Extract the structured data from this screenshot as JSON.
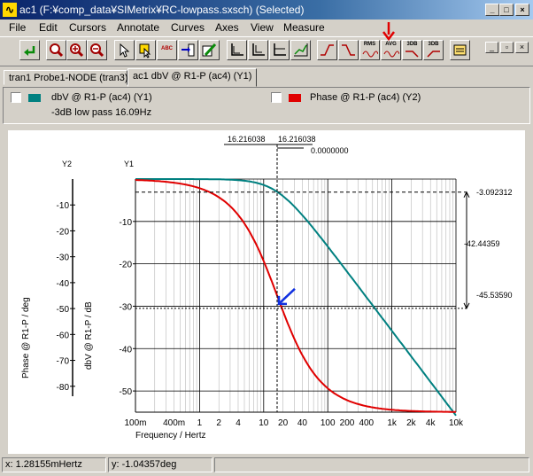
{
  "window": {
    "title": "ac1 (F:¥comp_data¥SIMetrix¥RC-lowpass.sxsch) (Selected)",
    "app_icon": "simetrix-icon"
  },
  "menu": [
    {
      "label": "File"
    },
    {
      "label": "Edit"
    },
    {
      "label": "Cursors"
    },
    {
      "label": "Annotate"
    },
    {
      "label": "Curves"
    },
    {
      "label": "Axes"
    },
    {
      "label": "View"
    },
    {
      "label": "Measure"
    }
  ],
  "toolbar": {
    "rms": "RMS",
    "avg": "AVG",
    "db3": "3DB",
    "db3b": "3DB",
    "annotation_arrow_color": "#e00000"
  },
  "tabs": [
    {
      "label": "tran1 Probe1-NODE (tran3)"
    },
    {
      "label": "ac1 dbV @ R1-P (ac4) (Y1)"
    }
  ],
  "legend": {
    "curve1": {
      "label": "dbV @ R1-P (ac4) (Y1)",
      "color": "#008080"
    },
    "curve2": {
      "label": "Phase @ R1-P (ac4) (Y2)",
      "color": "#e00000"
    },
    "measure": "-3dB low pass   16.09Hz"
  },
  "plot": {
    "y2_axis_title": "Y2",
    "y1_axis_title": "Y1",
    "y2_label": "Phase @ R1-P / deg",
    "y1_label": "dbV @ R1-P / dB",
    "x_label": "Frequency / Hertz",
    "cursor_x1": "16.216038",
    "cursor_x2": "16.216038",
    "cursor_delta": "0.0000000",
    "right_val_top": "-3.092312",
    "right_val_mid": "-42.44359",
    "right_val_bot": "-45.53590"
  },
  "chart_data": {
    "type": "line",
    "x_scale": "log",
    "x_ticks": [
      "100m",
      "400m",
      "1",
      "2",
      "4",
      "10",
      "20",
      "40",
      "100",
      "200",
      "400",
      "1k",
      "2k",
      "4k",
      "10k"
    ],
    "y1_ticks": [
      "-10",
      "-20",
      "-30",
      "-40",
      "-50"
    ],
    "y2_ticks": [
      "-10",
      "-20",
      "-30",
      "-40",
      "-50",
      "-60",
      "-70",
      "-80"
    ],
    "xlim": [
      0.1,
      10000
    ],
    "y1lim": [
      0,
      -55
    ],
    "y2lim": [
      0,
      -90
    ],
    "series": [
      {
        "name": "dbV @ R1-P (ac4) (Y1)",
        "axis": "y1",
        "color": "#008080",
        "x": [
          0.1,
          1,
          4,
          10,
          16.2,
          30,
          100,
          1000,
          10000
        ],
        "y": [
          0,
          -0.02,
          -0.25,
          -1.3,
          -3.09,
          -6.5,
          -16.3,
          -36.1,
          -56
        ]
      },
      {
        "name": "Phase @ R1-P (ac4) (Y2)",
        "axis": "y2",
        "color": "#e00000",
        "x": [
          0.1,
          1,
          4,
          10,
          16.2,
          30,
          100,
          1000,
          10000
        ],
        "y": [
          -0.4,
          -3.5,
          -14,
          -31.8,
          -45.5,
          -61.6,
          -80.8,
          -88.4,
          -89.9
        ]
      }
    ]
  },
  "status": {
    "x": "x: 1.28155mHertz",
    "y": "y: -1.04357deg"
  }
}
